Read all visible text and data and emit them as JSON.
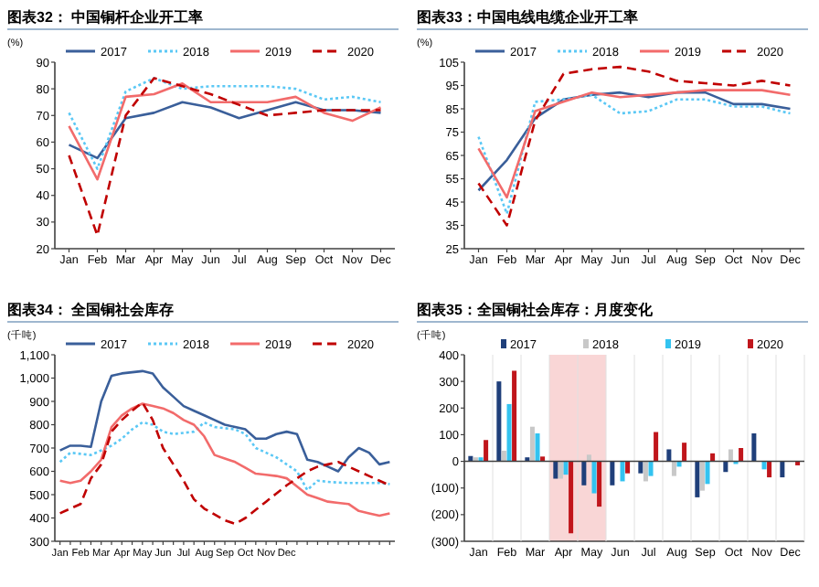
{
  "chart_data": [
    {
      "type": "line",
      "title": "图表32：  中国铜杆企业开工率",
      "ylabel": "(%)",
      "legend": "top",
      "ylim": [
        20,
        90
      ],
      "yticks": [
        20,
        30,
        40,
        50,
        60,
        70,
        80,
        90
      ],
      "categories": [
        "Jan",
        "Feb",
        "Mar",
        "Apr",
        "May",
        "Jun",
        "Jul",
        "Aug",
        "Sep",
        "Oct",
        "Nov",
        "Dec"
      ],
      "series": [
        {
          "name": "2017",
          "color": "#3a5f9a",
          "line_style": "solid",
          "values": [
            59,
            54,
            69,
            71,
            75,
            73,
            69,
            72,
            75,
            72,
            72,
            71
          ]
        },
        {
          "name": "2018",
          "color": "#5bc8f5",
          "line_style": "dotted",
          "values": [
            71,
            50,
            79,
            84,
            80,
            81,
            81,
            81,
            80,
            76,
            77,
            75
          ]
        },
        {
          "name": "2019",
          "color": "#f26b6b",
          "line_style": "solid",
          "values": [
            66,
            46,
            77,
            78,
            82,
            75,
            75,
            75,
            77,
            71,
            68,
            73
          ]
        },
        {
          "name": "2020",
          "color": "#c00000",
          "line_style": "dashed",
          "values": [
            55,
            25,
            70,
            84,
            81,
            78,
            74,
            70,
            71,
            72,
            72,
            72
          ]
        }
      ]
    },
    {
      "type": "line",
      "title": "图表33：中国电线电缆企业开工率",
      "ylabel": "(%)",
      "legend": "top",
      "ylim": [
        25,
        105
      ],
      "yticks": [
        25,
        35,
        45,
        55,
        65,
        75,
        85,
        95,
        105
      ],
      "categories": [
        "Jan",
        "Feb",
        "Mar",
        "Apr",
        "May",
        "Jun",
        "Jul",
        "Aug",
        "Sep",
        "Oct",
        "Nov",
        "Dec"
      ],
      "series": [
        {
          "name": "2017",
          "color": "#3a5f9a",
          "line_style": "solid",
          "values": [
            50,
            63,
            81,
            89,
            91,
            92,
            90,
            92,
            92,
            87,
            87,
            85
          ]
        },
        {
          "name": "2018",
          "color": "#5bc8f5",
          "line_style": "dotted",
          "values": [
            73,
            40,
            88,
            89,
            91,
            83,
            84,
            89,
            89,
            86,
            86,
            83
          ]
        },
        {
          "name": "2019",
          "color": "#f26b6b",
          "line_style": "solid",
          "values": [
            68,
            47,
            84,
            88,
            92,
            90,
            91,
            92,
            93,
            93,
            93,
            91
          ]
        },
        {
          "name": "2020",
          "color": "#c00000",
          "line_style": "dashed",
          "values": [
            53,
            35,
            80,
            100,
            102,
            103,
            101,
            97,
            96,
            95,
            97,
            95
          ]
        }
      ]
    },
    {
      "type": "line",
      "title": "图表34：  全国铜社会库存",
      "ylabel": "(千吨)",
      "legend": "top",
      "ylim": [
        300,
        1100
      ],
      "yticks": [
        300,
        400,
        500,
        600,
        700,
        800,
        900,
        {
          "value": 1000,
          "label": "1,000"
        },
        {
          "value": 1100,
          "label": "1,100"
        }
      ],
      "categories": [
        "Jan",
        null,
        "Feb",
        null,
        "Mar",
        null,
        "Apr",
        null,
        "May",
        null,
        "Jun",
        null,
        "Jul",
        null,
        "Aug",
        null,
        "Sep",
        null,
        "Oct",
        null,
        "Nov",
        null,
        "Dec",
        null,
        null,
        null,
        null,
        null,
        null,
        null,
        null,
        null,
        null
      ],
      "series": [
        {
          "name": "2017",
          "color": "#3a5f9a",
          "line_style": "solid",
          "values": [
            690,
            710,
            710,
            705,
            900,
            1010,
            1020,
            1025,
            1030,
            1020,
            960,
            920,
            880,
            860,
            840,
            820,
            800,
            790,
            780,
            740,
            740,
            760,
            770,
            760,
            650,
            640,
            620,
            600,
            660,
            700,
            680,
            630,
            640
          ]
        },
        {
          "name": "2018",
          "color": "#5bc8f5",
          "line_style": "dotted",
          "values": [
            640,
            680,
            675,
            670,
            690,
            710,
            740,
            780,
            810,
            800,
            770,
            760,
            765,
            770,
            810,
            790,
            785,
            780,
            760,
            700,
            680,
            660,
            630,
            600,
            520,
            560,
            555,
            552,
            550,
            550,
            550,
            550,
            545
          ]
        },
        {
          "name": "2019",
          "color": "#f26b6b",
          "line_style": "solid",
          "values": [
            560,
            550,
            560,
            600,
            650,
            790,
            840,
            870,
            890,
            880,
            870,
            850,
            820,
            800,
            750,
            670,
            655,
            640,
            615,
            590,
            585,
            580,
            570,
            535,
            500,
            485,
            470,
            465,
            460,
            430,
            420,
            410,
            420
          ]
        },
        {
          "name": "2020",
          "color": "#c00000",
          "line_style": "dashed",
          "values": [
            420,
            440,
            460,
            570,
            630,
            770,
            820,
            860,
            895,
            820,
            700,
            630,
            560,
            480,
            440,
            415,
            390,
            375,
            400,
            435,
            470,
            505,
            540,
            570,
            600,
            620,
            630,
            640,
            620,
            600,
            580,
            560,
            540
          ]
        }
      ]
    },
    {
      "type": "bar",
      "title": "图表35：全国铜社会库存：月度变化",
      "ylabel": "(千吨)",
      "legend": "top",
      "ylim": [
        -300,
        400
      ],
      "yticks": [
        {
          "value": -300,
          "label": "(300)"
        },
        {
          "value": -200,
          "label": "(200)"
        },
        {
          "value": -100,
          "label": "(100)"
        },
        0,
        100,
        200,
        300,
        400
      ],
      "categories": [
        "Jan",
        "Feb",
        "Mar",
        "Apr",
        "May",
        "Jun",
        "Jul",
        "Aug",
        "Sep",
        "Oct",
        "Nov",
        "Dec"
      ],
      "bands": [
        {
          "axis": "x",
          "from": "Apr",
          "to": "May",
          "color": "#f9d6d6"
        }
      ],
      "series": [
        {
          "name": "2017",
          "color": "#1f3f7a",
          "values": [
            20,
            300,
            15,
            -65,
            -90,
            -90,
            -45,
            45,
            -135,
            -40,
            105,
            -60
          ]
        },
        {
          "name": "2018",
          "color": "#c8c8c8",
          "values": [
            15,
            40,
            130,
            -65,
            25,
            null,
            -75,
            -55,
            -110,
            45,
            null,
            null
          ]
        },
        {
          "name": "2019",
          "color": "#33c3f0",
          "values": [
            15,
            215,
            105,
            -50,
            -120,
            -75,
            -55,
            -20,
            -85,
            -10,
            -30,
            null
          ]
        },
        {
          "name": "2020",
          "color": "#c0161c",
          "values": [
            80,
            340,
            18,
            -270,
            -170,
            -45,
            110,
            70,
            30,
            50,
            -60,
            -15
          ]
        }
      ]
    }
  ]
}
